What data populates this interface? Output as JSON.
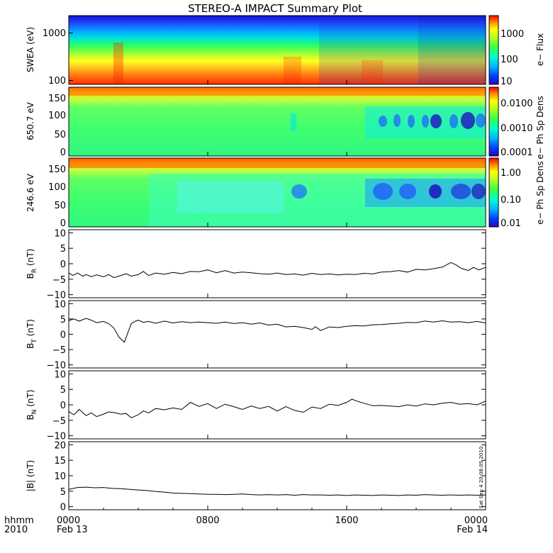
{
  "chart_data": {
    "title": "STEREO-A IMPACT Summary Plot",
    "x_axis": {
      "corner_labels": [
        "hhmm",
        "2010"
      ],
      "ticks": [
        {
          "hours": 0,
          "time": "0000",
          "date": "Feb 13"
        },
        {
          "hours": 8,
          "time": "0800",
          "date": ""
        },
        {
          "hours": 16,
          "time": "1600",
          "date": ""
        },
        {
          "hours": 24,
          "time": "0000",
          "date": "Feb 14"
        }
      ]
    },
    "stamp": "Sat Sep  4 20:08:05 2010",
    "panels": [
      {
        "id": "swea",
        "type": "heatmap",
        "ylabel": "SWEA (eV)",
        "yscale": "log",
        "ylim": [
          100,
          2000
        ],
        "yticks": [
          "100",
          "1000"
        ],
        "colorbar": {
          "label": "e− Flux",
          "scale": "log",
          "range": [
            10,
            5000
          ],
          "ticks": [
            "10",
            "100",
            "1000"
          ]
        }
      },
      {
        "id": "ph650",
        "type": "heatmap",
        "ylabel": "650.7 eV",
        "yscale": "linear",
        "ylim": [
          0,
          180
        ],
        "yticks": [
          "0",
          "50",
          "100",
          "150"
        ],
        "colorbar": {
          "label": "e− Ph Sp Dens",
          "scale": "log",
          "range": [
            0.0001,
            0.03
          ],
          "ticks": [
            "0.0001",
            "0.0010",
            "0.0100"
          ]
        }
      },
      {
        "id": "ph246",
        "type": "heatmap",
        "ylabel": "246.6 eV",
        "yscale": "linear",
        "ylim": [
          0,
          180
        ],
        "yticks": [
          "0",
          "50",
          "100",
          "150"
        ],
        "colorbar": {
          "label": "e− Ph Sp Dens",
          "scale": "log",
          "range": [
            0.01,
            2.5
          ],
          "ticks": [
            "0.01",
            "0.10",
            "1.00"
          ]
        }
      },
      {
        "id": "br",
        "type": "line",
        "ylabel": "B",
        "ylabel_sub": "R",
        "ylabel_unit": " (nT)",
        "ylim": [
          -11,
          11
        ],
        "yticks": [
          "−10",
          "−5",
          "0",
          "5",
          "10"
        ],
        "x_hours": [
          0,
          0.25,
          0.5,
          0.8,
          1,
          1.3,
          1.6,
          2,
          2.3,
          2.6,
          3,
          3.3,
          3.6,
          4,
          4.3,
          4.6,
          5,
          5.5,
          6,
          6.5,
          7,
          7.5,
          8,
          8.5,
          9,
          9.5,
          10,
          10.5,
          11,
          11.5,
          12,
          12.5,
          13,
          13.5,
          14,
          14.5,
          15,
          15.5,
          16,
          16.5,
          17,
          17.5,
          18,
          18.5,
          19,
          19.5,
          20,
          20.5,
          21,
          21.5,
          22,
          22.3,
          22.6,
          23,
          23.3,
          23.6,
          24
        ],
        "values": [
          -3.0,
          -3.8,
          -3.0,
          -4.0,
          -3.5,
          -4.2,
          -3.6,
          -4.2,
          -3.5,
          -4.5,
          -3.8,
          -3.2,
          -4.0,
          -3.5,
          -2.5,
          -3.8,
          -3.0,
          -3.4,
          -2.8,
          -3.2,
          -2.5,
          -2.6,
          -2.0,
          -2.9,
          -2.2,
          -3.0,
          -2.7,
          -2.9,
          -3.2,
          -3.4,
          -3.0,
          -3.5,
          -3.3,
          -3.7,
          -3.1,
          -3.5,
          -3.3,
          -3.6,
          -3.4,
          -3.5,
          -3.1,
          -3.3,
          -2.7,
          -2.6,
          -2.2,
          -2.7,
          -1.8,
          -2.0,
          -1.6,
          -1.1,
          0.4,
          -0.4,
          -1.5,
          -2.2,
          -1.2,
          -2.0,
          -1.2
        ]
      },
      {
        "id": "bt",
        "type": "line",
        "ylabel": "B",
        "ylabel_sub": "T",
        "ylabel_unit": " (nT)",
        "ylim": [
          -11,
          11
        ],
        "yticks": [
          "−10",
          "−5",
          "0",
          "5",
          "10"
        ],
        "x_hours": [
          0,
          0.3,
          0.6,
          1,
          1.3,
          1.6,
          2,
          2.3,
          2.6,
          2.9,
          3.2,
          3.4,
          3.6,
          3.8,
          4,
          4.3,
          4.6,
          5,
          5.5,
          6,
          6.5,
          7,
          7.5,
          8,
          8.5,
          9,
          9.5,
          10,
          10.5,
          11,
          11.5,
          12,
          12.5,
          13,
          13.5,
          14,
          14.2,
          14.5,
          15,
          15.5,
          16,
          16.5,
          17,
          17.5,
          18,
          18.5,
          19,
          19.5,
          20,
          20.5,
          21,
          21.5,
          22,
          22.5,
          23,
          23.5,
          24
        ],
        "values": [
          4.5,
          5.0,
          4.3,
          5.2,
          4.6,
          3.8,
          4.2,
          3.5,
          2.0,
          -1.0,
          -2.6,
          0.5,
          3.5,
          4.2,
          4.6,
          3.9,
          4.2,
          3.6,
          4.3,
          3.7,
          4.1,
          3.8,
          4.0,
          3.8,
          3.6,
          4.0,
          3.5,
          3.8,
          3.3,
          3.7,
          3.0,
          3.3,
          2.4,
          2.6,
          2.2,
          1.6,
          2.5,
          1.2,
          2.4,
          2.2,
          2.6,
          2.8,
          2.7,
          3.1,
          3.2,
          3.4,
          3.6,
          3.9,
          3.8,
          4.3,
          4.0,
          4.4,
          4.0,
          4.1,
          3.8,
          4.2,
          3.7
        ]
      },
      {
        "id": "bn",
        "type": "line",
        "ylabel": "B",
        "ylabel_sub": "N",
        "ylabel_unit": " (nT)",
        "ylim": [
          -11,
          11
        ],
        "yticks": [
          "−10",
          "−5",
          "0",
          "5",
          "10"
        ],
        "x_hours": [
          0,
          0.3,
          0.6,
          1,
          1.3,
          1.6,
          2,
          2.3,
          2.6,
          3,
          3.3,
          3.6,
          4,
          4.3,
          4.6,
          5,
          5.5,
          6,
          6.5,
          7,
          7.5,
          8,
          8.5,
          9,
          9.5,
          10,
          10.5,
          11,
          11.5,
          12,
          12.5,
          13,
          13.5,
          14,
          14.5,
          15,
          15.5,
          16,
          16.3,
          16.6,
          17,
          17.5,
          18,
          18.5,
          19,
          19.5,
          20,
          20.5,
          21,
          21.5,
          22,
          22.5,
          23,
          23.5,
          24
        ],
        "values": [
          -2.2,
          -3.2,
          -1.5,
          -3.5,
          -2.6,
          -3.8,
          -3.0,
          -2.3,
          -2.5,
          -3.0,
          -2.8,
          -4.2,
          -3.2,
          -2.0,
          -2.6,
          -1.2,
          -1.6,
          -1.0,
          -1.5,
          0.8,
          -0.5,
          0.4,
          -1.2,
          0.2,
          -0.6,
          -1.5,
          -0.4,
          -1.2,
          -0.5,
          -2.0,
          -0.6,
          -1.8,
          -2.4,
          -0.7,
          -1.2,
          0.2,
          -0.2,
          0.8,
          1.8,
          1.2,
          0.5,
          -0.3,
          -0.2,
          -0.4,
          -0.6,
          0.0,
          -0.4,
          0.3,
          0.0,
          0.5,
          0.8,
          0.2,
          0.4,
          0.0,
          1.2
        ]
      },
      {
        "id": "bmag",
        "type": "line",
        "ylabel": "|B| (nT)",
        "ylim": [
          -1,
          21
        ],
        "yticks": [
          "0",
          "5",
          "10",
          "15",
          "20"
        ],
        "x_hours": [
          0,
          0.5,
          1,
          1.5,
          2,
          2.5,
          3,
          3.5,
          4,
          4.5,
          5,
          5.5,
          6,
          6.5,
          7,
          7.5,
          8,
          8.5,
          9,
          9.5,
          10,
          10.5,
          11,
          11.5,
          12,
          12.5,
          13,
          13.5,
          14,
          14.5,
          15,
          15.5,
          16,
          16.5,
          17,
          17.5,
          18,
          18.5,
          19,
          19.5,
          20,
          20.5,
          21,
          21.5,
          22,
          22.5,
          23,
          23.5,
          24
        ],
        "values": [
          5.6,
          6.2,
          6.3,
          6.1,
          6.2,
          5.9,
          5.8,
          5.6,
          5.4,
          5.2,
          4.9,
          4.7,
          4.4,
          4.3,
          4.2,
          4.1,
          4.0,
          4.0,
          3.9,
          4.0,
          4.1,
          3.9,
          3.8,
          3.9,
          3.8,
          3.9,
          3.7,
          3.9,
          3.8,
          3.8,
          3.7,
          3.8,
          3.6,
          3.8,
          3.7,
          3.6,
          3.8,
          3.7,
          3.6,
          3.8,
          3.7,
          3.9,
          3.8,
          3.7,
          3.8,
          3.7,
          3.8,
          3.7,
          3.8
        ]
      }
    ]
  }
}
